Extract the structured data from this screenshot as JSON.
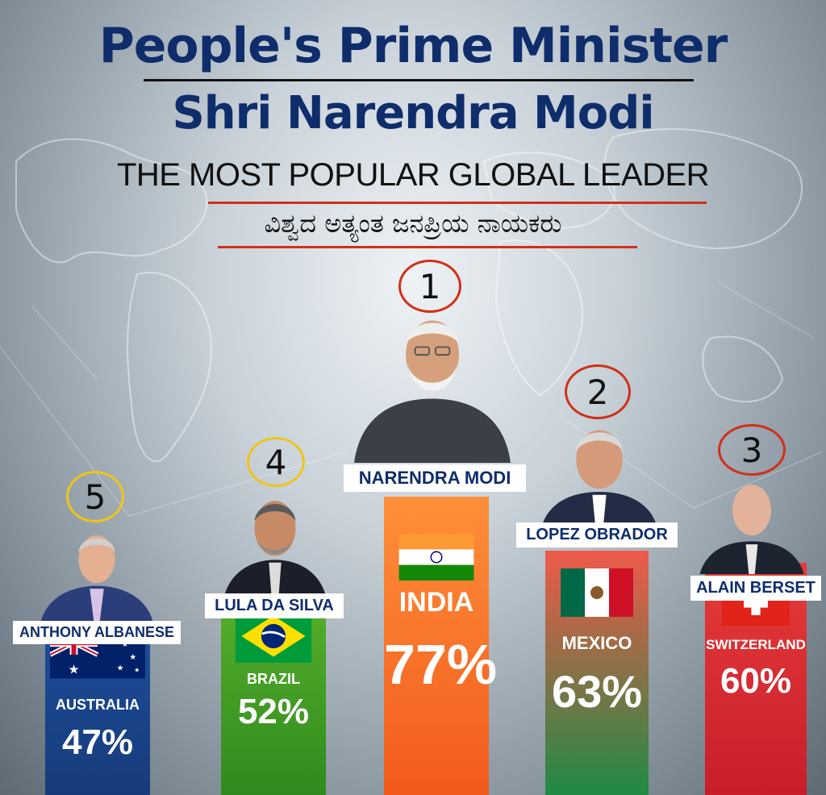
{
  "header": {
    "title_line1": "People's Prime Minister",
    "title_line2": "Shri Narendra Modi",
    "subtitle": "THE MOST POPULAR GLOBAL LEADER",
    "subtitle_kannada": "ವಿಶ್ವದ ಅತ್ಯಂತ ಜನಪ್ರಿಯ ನಾಯಕರು"
  },
  "colors": {
    "title": "#0f2d6b",
    "underline_red": "#d0301a",
    "rank_red": "#d0301a",
    "rank_yellow": "#f0c419"
  },
  "chart_data": {
    "type": "bar",
    "categories": [
      "AUSTRALIA",
      "BRAZIL",
      "INDIA",
      "MEXICO",
      "SWITZERLAND"
    ],
    "leaders": [
      "ANTHONY ALBANESE",
      "LULA DA SILVA",
      "NARENDRA MODI",
      "LOPEZ OBRADOR",
      "ALAIN BERSET"
    ],
    "ranks": [
      "5",
      "4",
      "1",
      "2",
      "3"
    ],
    "values": [
      47,
      52,
      77,
      63,
      60
    ],
    "value_labels": [
      "47%",
      "52%",
      "77%",
      "63%",
      "60%"
    ],
    "ylim": [
      0,
      100
    ],
    "xlabel": "",
    "ylabel": ""
  }
}
